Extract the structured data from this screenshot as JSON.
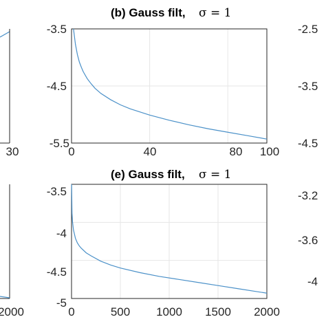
{
  "panels": {
    "b": {
      "title": "(b) Gauss filt,",
      "title_sigma": "σ = 1",
      "y_tick_labels": [
        "-3.5",
        "-4.5",
        "-5.5"
      ],
      "x_tick_labels": [
        "0",
        "40",
        "80",
        "100"
      ]
    },
    "e": {
      "title": "(e) Gauss filt,",
      "title_sigma": "σ = 1",
      "y_tick_labels": [
        "-3.5",
        "-4",
        "-4.5",
        "-5"
      ],
      "x_tick_labels": [
        "0",
        "500",
        "1000",
        "1500",
        "2000"
      ]
    },
    "left_partial": {
      "top_x_tick_label": "30",
      "bottom_x_tick_label": "2000"
    },
    "right_partial": {
      "top_y_tick_labels": [
        "-2.5",
        "-3.5",
        "-4.5"
      ],
      "bottom_y_tick_labels": [
        "-3.2",
        "-3.6",
        "-4"
      ]
    }
  },
  "chart_data": [
    {
      "type": "line",
      "panel": "b",
      "x_ticks": [
        0,
        40,
        80,
        100
      ],
      "y_ticks": [
        -3.5,
        -4.5,
        -5.5
      ],
      "xlim": [
        0,
        100
      ],
      "ylim": [
        -5.5,
        -3.5
      ],
      "grid": true,
      "color": "#4a90c8",
      "series": [
        {
          "x": [
            1,
            2,
            3,
            4,
            5,
            6,
            8,
            10,
            12,
            15,
            20,
            25,
            30,
            40,
            50,
            60,
            70,
            80,
            90,
            100
          ],
          "y": [
            -3.5,
            -3.77,
            -3.95,
            -4.08,
            -4.17,
            -4.25,
            -4.37,
            -4.46,
            -4.54,
            -4.63,
            -4.74,
            -4.83,
            -4.9,
            -5.01,
            -5.1,
            -5.18,
            -5.25,
            -5.31,
            -5.37,
            -5.43
          ]
        }
      ]
    },
    {
      "type": "line",
      "panel": "e",
      "x_ticks": [
        0,
        500,
        1000,
        1500,
        2000
      ],
      "y_ticks": [
        -3.5,
        -4,
        -4.5,
        -5
      ],
      "xlim": [
        0,
        2000
      ],
      "ylim": [
        -5,
        -3.5
      ],
      "grid": true,
      "color": "#4a90c8",
      "series": [
        {
          "x": [
            1,
            5,
            10,
            20,
            40,
            60,
            80,
            100,
            150,
            200,
            300,
            400,
            500,
            700,
            900,
            1100,
            1300,
            1500,
            1700,
            1900,
            2000
          ],
          "y": [
            -3.5,
            -3.88,
            -3.99,
            -4.1,
            -4.21,
            -4.27,
            -4.31,
            -4.34,
            -4.4,
            -4.44,
            -4.51,
            -4.56,
            -4.6,
            -4.66,
            -4.71,
            -4.75,
            -4.79,
            -4.83,
            -4.87,
            -4.91,
            -4.93
          ]
        }
      ]
    }
  ]
}
